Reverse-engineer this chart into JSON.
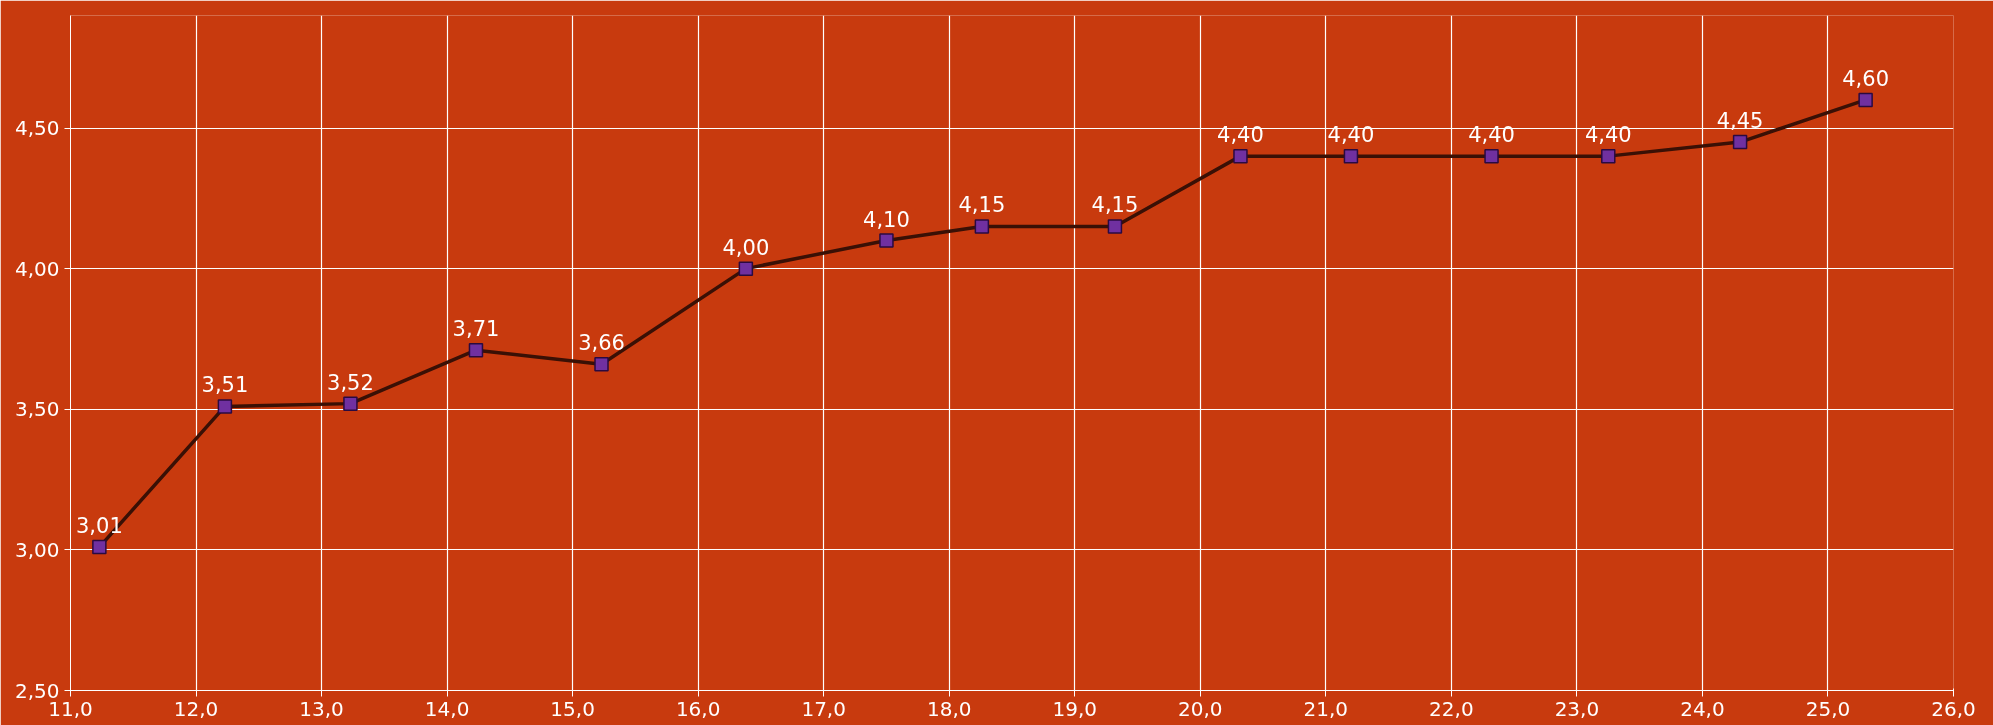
{
  "chart_data": {
    "type": "line",
    "x": [
      11.23,
      12.23,
      13.23,
      14.23,
      15.23,
      16.38,
      17.5,
      18.26,
      19.32,
      20.32,
      21.2,
      22.32,
      23.25,
      24.3,
      25.3
    ],
    "series": [
      {
        "color": "#3a1005",
        "values": [
          3.01,
          3.51,
          3.52,
          3.71,
          3.66,
          4.0,
          4.1,
          4.15,
          4.15,
          4.4,
          4.4,
          4.4,
          4.4,
          4.45,
          4.6
        ],
        "value_labels": [
          "3,01",
          "3,51",
          "3,52",
          "3,71",
          "3,66",
          "4,00",
          "4,10",
          "4,15",
          "4,15",
          "4,40",
          "4,40",
          "4,40",
          "4,40",
          "4,45",
          "4,60"
        ]
      }
    ],
    "marker": "square",
    "line_style": "solid",
    "grid": true,
    "xlim": [
      11.0,
      26.0
    ],
    "xticks": [
      {
        "value": 11,
        "label": "11,0"
      },
      {
        "value": 12,
        "label": "12,0"
      },
      {
        "value": 13,
        "label": "13,0"
      },
      {
        "value": 14,
        "label": "14,0"
      },
      {
        "value": 15,
        "label": "15,0"
      },
      {
        "value": 16,
        "label": "16,0"
      },
      {
        "value": 17,
        "label": "17,0"
      },
      {
        "value": 18,
        "label": "18,0"
      },
      {
        "value": 19,
        "label": "19,0"
      },
      {
        "value": 20,
        "label": "20,0"
      },
      {
        "value": 21,
        "label": "21,0"
      },
      {
        "value": 22,
        "label": "22,0"
      },
      {
        "value": 23,
        "label": "23,0"
      },
      {
        "value": 24,
        "label": "24,0"
      },
      {
        "value": 25,
        "label": "25,0"
      },
      {
        "value": 26,
        "label": "26,0"
      }
    ],
    "ylim": [
      2.5,
      4.9
    ],
    "yticks": [
      {
        "value": 2.5,
        "label": "2,50"
      },
      {
        "value": 3.0,
        "label": "3,00"
      },
      {
        "value": 3.5,
        "label": "3,50"
      },
      {
        "value": 4.0,
        "label": "4,00"
      },
      {
        "value": 4.5,
        "label": "4,50"
      }
    ]
  }
}
